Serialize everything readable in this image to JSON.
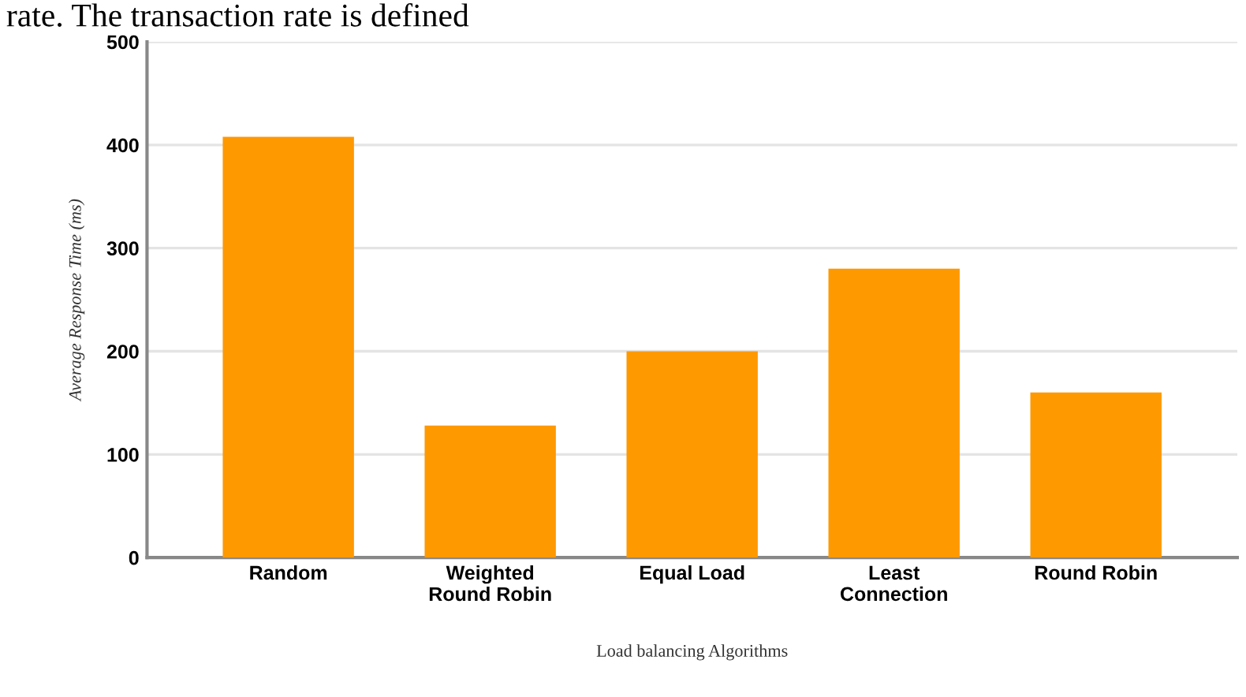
{
  "chart_data": {
    "type": "bar",
    "categories": [
      "Random",
      "Weighted\nRound Robin",
      "Equal Load",
      "Least\nConnection",
      "Round Robin"
    ],
    "values": [
      408,
      128,
      200,
      280,
      160
    ],
    "color": "#ff9900",
    "xlabel": "Load balancing Algorithms",
    "ylabel": "Average Response Time (ms)",
    "ylim": [
      0,
      500
    ],
    "yticks": [
      0,
      100,
      200,
      300,
      400,
      500
    ],
    "grid": "y",
    "annotations": [
      "rate. The transaction rate is defined"
    ]
  }
}
